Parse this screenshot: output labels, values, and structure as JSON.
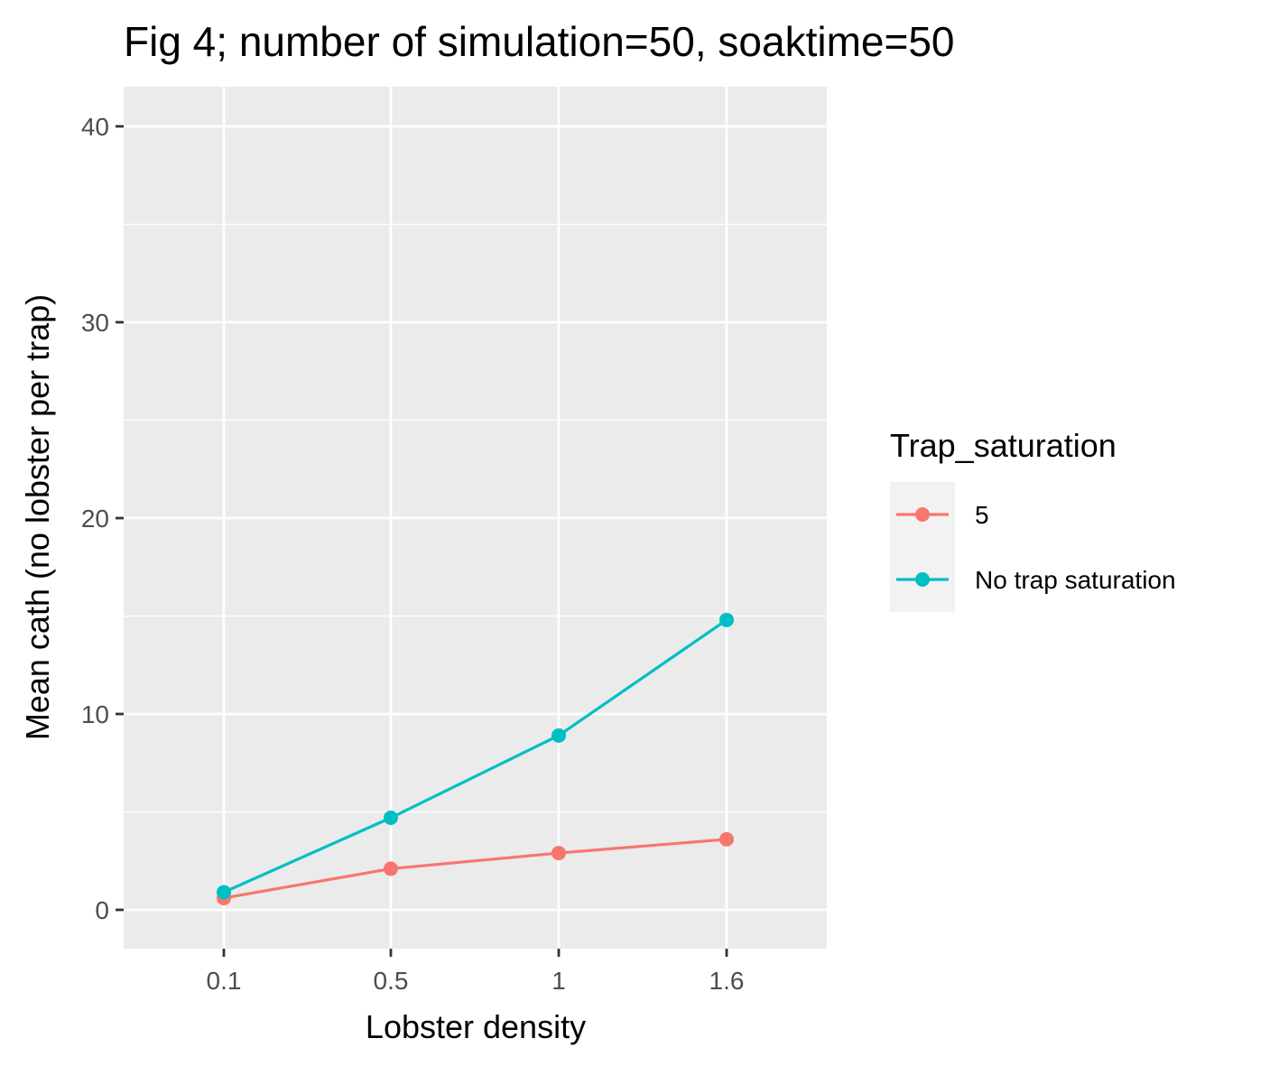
{
  "chart_data": {
    "type": "line",
    "title": "Fig 4; number of simulation=50, soaktime=50",
    "xlabel": "Lobster density",
    "ylabel": "Mean cath (no lobster per trap)",
    "categories": [
      "0.1",
      "0.5",
      "1",
      "1.6"
    ],
    "yticks": [
      "0",
      "10",
      "20",
      "30",
      "40"
    ],
    "ylim": [
      -1.9,
      41.8
    ],
    "grid": true,
    "legend": {
      "title": "Trap_saturation",
      "position": "right"
    },
    "series": [
      {
        "name": "5",
        "color": "#F8766D",
        "values": [
          0.6,
          2.1,
          2.9,
          3.6
        ]
      },
      {
        "name": "No trap saturation",
        "color": "#00BFC4",
        "values": [
          0.9,
          4.7,
          8.9,
          14.8
        ]
      }
    ]
  }
}
